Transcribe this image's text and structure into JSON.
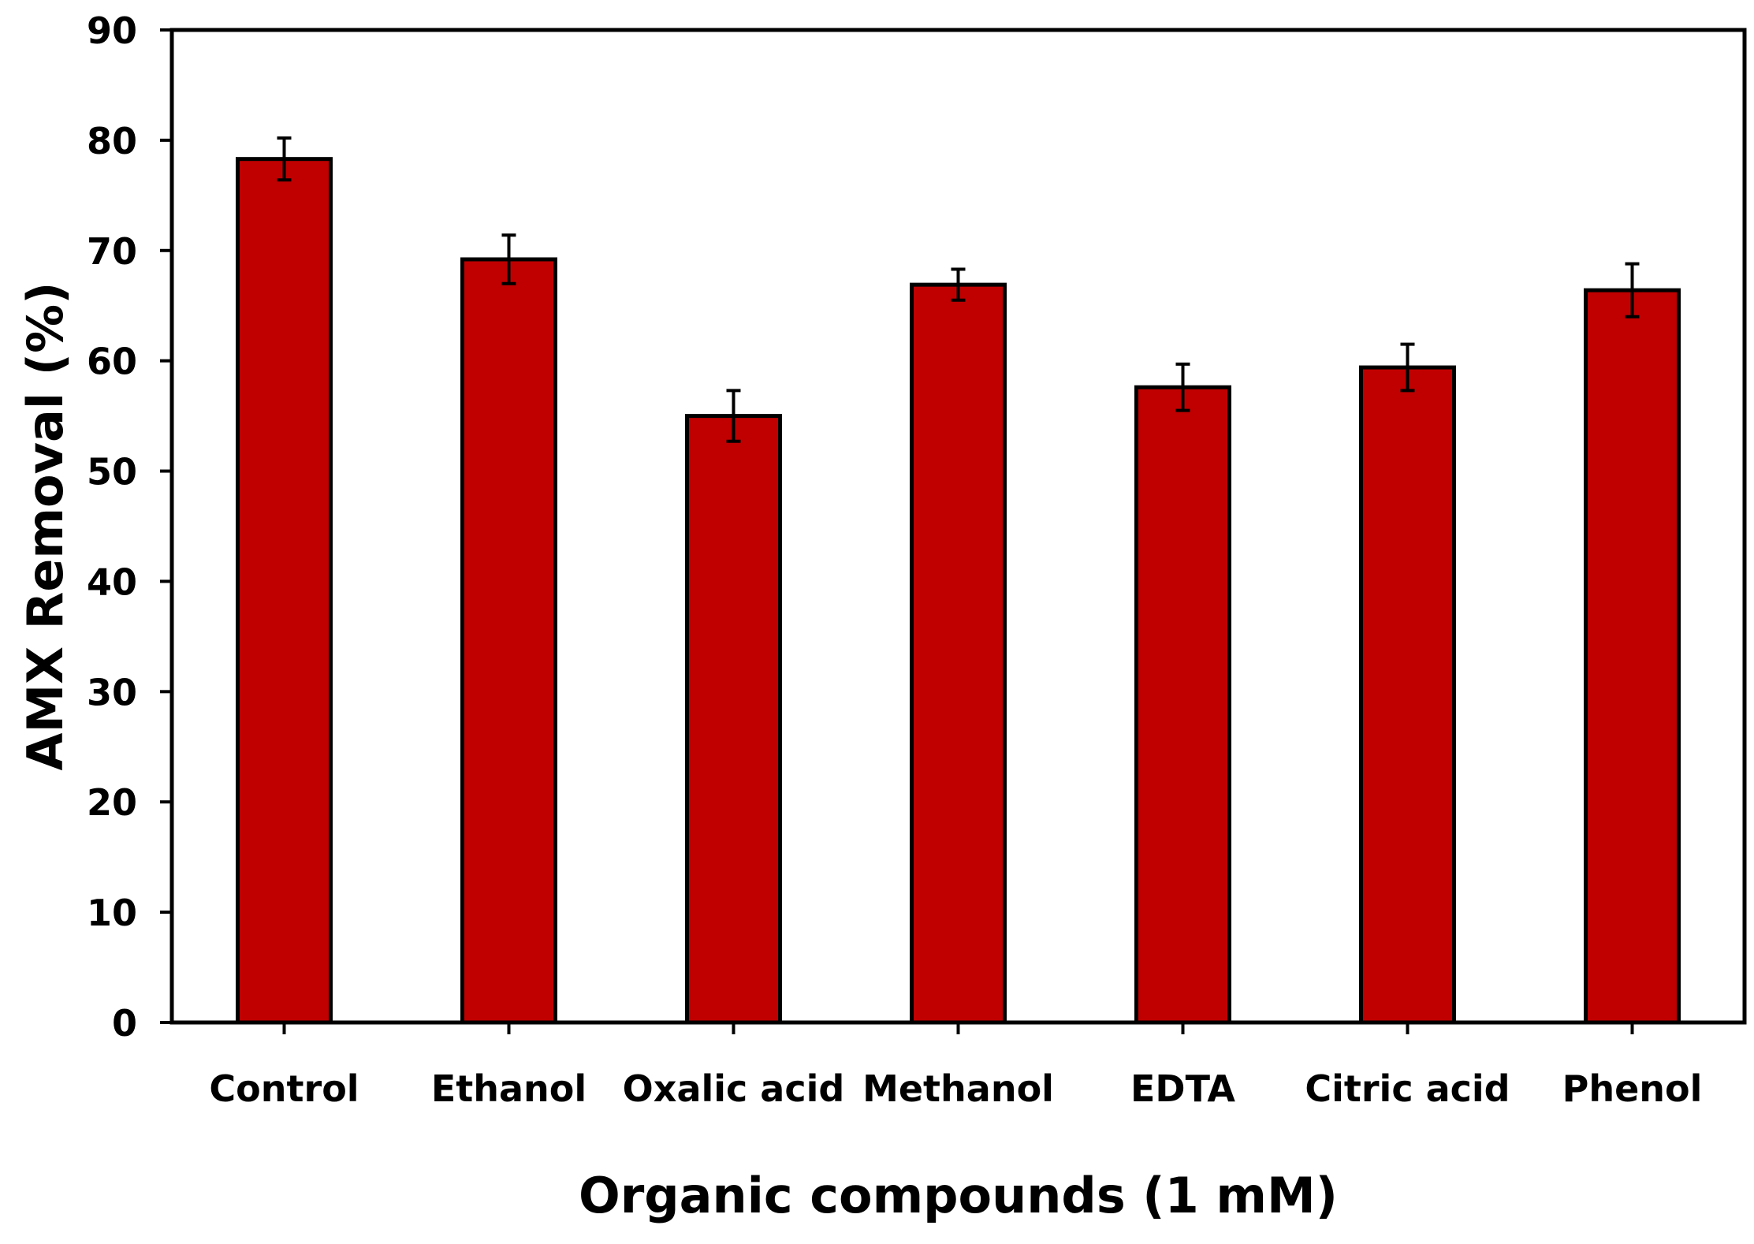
{
  "chart_data": {
    "type": "bar",
    "title": "",
    "xlabel": "Organic compounds (1 mM)",
    "ylabel": "AMX Removal (%)",
    "ylim": [
      0,
      90
    ],
    "yticks": [
      0,
      10,
      20,
      30,
      40,
      50,
      60,
      70,
      80,
      90
    ],
    "categories": [
      "Control",
      "Ethanol",
      "Oxalic acid",
      "Methanol",
      "EDTA",
      "Citric acid",
      "Phenol"
    ],
    "values": [
      78.3,
      69.2,
      55.0,
      66.9,
      57.6,
      59.4,
      66.4
    ],
    "errors": [
      1.9,
      2.2,
      2.3,
      1.4,
      2.1,
      2.1,
      2.4
    ],
    "bar_color": "#C00000",
    "edge_color": "#000000",
    "grid": false,
    "legend": "none"
  }
}
